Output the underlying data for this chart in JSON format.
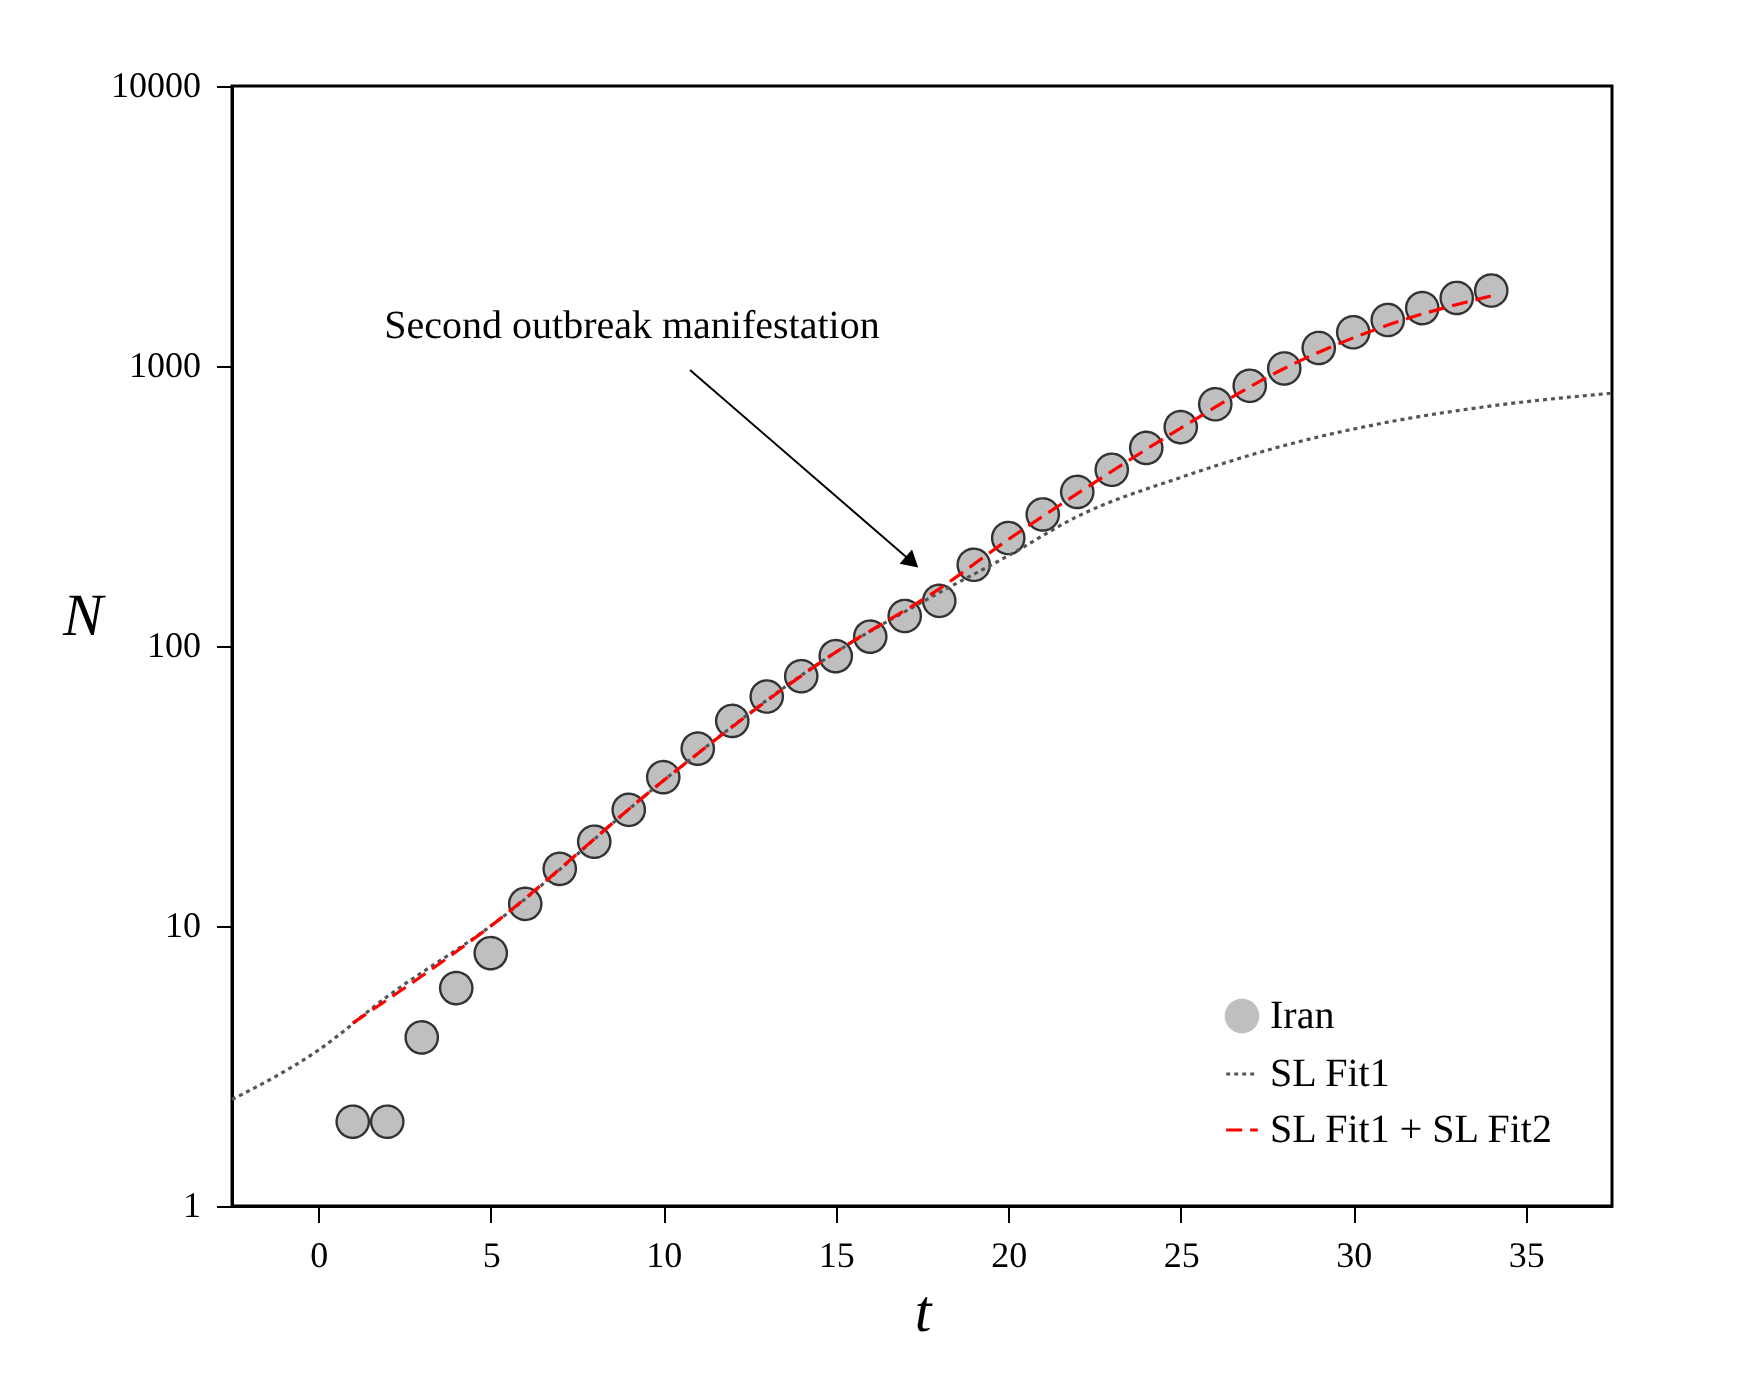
{
  "chart_data": {
    "type": "scatter",
    "xlabel": "t",
    "ylabel": "N",
    "log": "y",
    "xlim": [
      -2.5,
      37.5
    ],
    "ylim": [
      1,
      10000
    ],
    "xticks": [
      0,
      5,
      10,
      15,
      20,
      25,
      30,
      35
    ],
    "yticks": [
      1,
      10,
      100,
      1000,
      10000
    ],
    "legend": "bottom right",
    "grid": false,
    "annotations": [
      "Second outbreak manifestation"
    ],
    "series": [
      {
        "name": "Iran",
        "type": "scatter",
        "marker": "circle",
        "color": "#bfbfbf",
        "x": [
          1,
          2,
          3,
          4,
          5,
          6,
          7,
          8,
          9,
          10,
          11,
          12,
          13,
          14,
          15,
          16,
          17,
          18,
          19,
          20,
          21,
          22,
          23,
          24,
          25,
          26,
          27,
          28,
          29,
          30,
          31,
          32,
          33,
          34
        ],
        "values": [
          2,
          2,
          4,
          6,
          8,
          12,
          16,
          20,
          26,
          34,
          43,
          54,
          66,
          78,
          92,
          108,
          128,
          145,
          195,
          243,
          295,
          355,
          426,
          510,
          605,
          730,
          850,
          980,
          1160,
          1320,
          1460,
          1610,
          1750,
          1860
        ]
      },
      {
        "name": "SL Fit1",
        "type": "line",
        "line_style": "dotted",
        "color": "#555555",
        "x": [
          -2.5,
          0,
          2,
          5,
          10,
          15,
          18,
          20,
          22,
          25,
          28,
          31,
          34,
          37.5
        ],
        "values": [
          2.4,
          3.6,
          5.6,
          10,
          33,
          95,
          155,
          210,
          290,
          400,
          520,
          630,
          720,
          800
        ]
      },
      {
        "name": "SL Fit1 + SL Fit2",
        "type": "line",
        "line_style": "dashed",
        "color": "#ff0000",
        "x": [
          1,
          5,
          10,
          15,
          18,
          20,
          22,
          25,
          28,
          31,
          34
        ],
        "values": [
          4.5,
          10,
          33,
          95,
          160,
          240,
          350,
          600,
          980,
          1400,
          1780
        ]
      }
    ]
  }
}
